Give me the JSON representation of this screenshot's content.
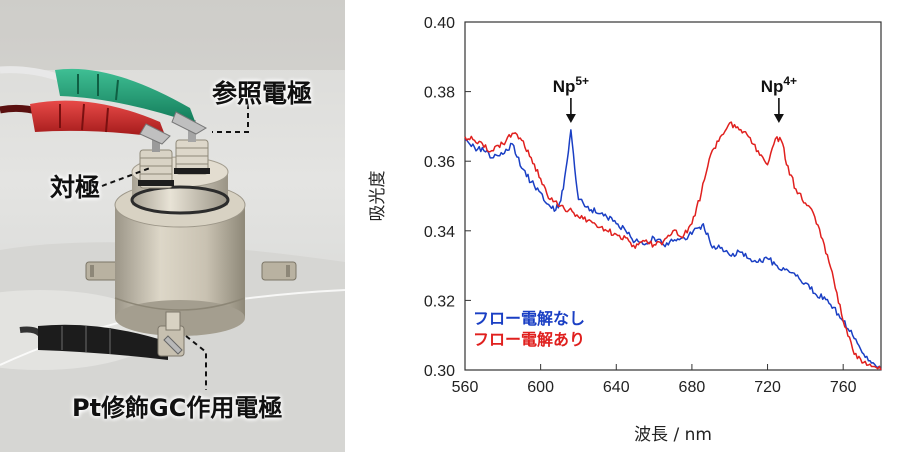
{
  "photo": {
    "labels": {
      "reference_electrode": "参照電極",
      "counter_electrode": "対極",
      "working_electrode": "Pt修飾GC作用電極"
    }
  },
  "chart_data": {
    "type": "line",
    "xlabel": "波長 / nm",
    "ylabel": "吸光度",
    "xlim": [
      560,
      780
    ],
    "ylim": [
      0.3,
      0.4
    ],
    "xticks": [
      560,
      600,
      640,
      680,
      720,
      760
    ],
    "yticks": [
      "0.30",
      "0.32",
      "0.34",
      "0.36",
      "0.38",
      "0.40"
    ],
    "grid": false,
    "legend_position": "bottom-left",
    "annotations": [
      {
        "base": "Np",
        "sup": "5+",
        "x": 616,
        "y": 0.379
      },
      {
        "base": "Np",
        "sup": "4+",
        "x": 726,
        "y": 0.379
      }
    ],
    "series": [
      {
        "name": "フロー電解なし",
        "color": "#1a3fc4",
        "x": [
          560,
          565,
          570,
          575,
          580,
          585,
          590,
          595,
          600,
          605,
          608,
          610,
          612,
          614,
          616,
          618,
          620,
          625,
          630,
          635,
          640,
          645,
          650,
          655,
          660,
          665,
          670,
          675,
          680,
          684,
          686,
          690,
          695,
          700,
          705,
          710,
          715,
          720,
          725,
          730,
          735,
          740,
          745,
          750,
          755,
          760,
          765,
          770,
          775,
          780
        ],
        "y": [
          0.366,
          0.364,
          0.363,
          0.361,
          0.362,
          0.365,
          0.358,
          0.354,
          0.351,
          0.347,
          0.346,
          0.348,
          0.352,
          0.36,
          0.369,
          0.358,
          0.349,
          0.347,
          0.345,
          0.344,
          0.342,
          0.34,
          0.337,
          0.336,
          0.338,
          0.336,
          0.337,
          0.338,
          0.339,
          0.341,
          0.342,
          0.336,
          0.335,
          0.333,
          0.334,
          0.332,
          0.331,
          0.332,
          0.33,
          0.329,
          0.327,
          0.325,
          0.322,
          0.321,
          0.318,
          0.314,
          0.31,
          0.305,
          0.302,
          0.3
        ]
      },
      {
        "name": "フロー電解あり",
        "color": "#e0201e",
        "x": [
          560,
          565,
          570,
          575,
          580,
          585,
          590,
          595,
          600,
          605,
          610,
          615,
          620,
          625,
          630,
          635,
          640,
          645,
          650,
          655,
          660,
          665,
          670,
          675,
          680,
          685,
          690,
          695,
          700,
          705,
          710,
          715,
          720,
          725,
          728,
          730,
          735,
          740,
          745,
          750,
          755,
          760,
          765,
          770,
          775,
          780
        ],
        "y": [
          0.367,
          0.366,
          0.364,
          0.363,
          0.365,
          0.368,
          0.366,
          0.361,
          0.355,
          0.349,
          0.347,
          0.346,
          0.344,
          0.343,
          0.341,
          0.34,
          0.339,
          0.338,
          0.335,
          0.337,
          0.336,
          0.337,
          0.34,
          0.338,
          0.342,
          0.351,
          0.362,
          0.367,
          0.371,
          0.369,
          0.367,
          0.363,
          0.359,
          0.367,
          0.365,
          0.359,
          0.352,
          0.348,
          0.344,
          0.336,
          0.326,
          0.314,
          0.306,
          0.302,
          0.301,
          0.3
        ]
      }
    ]
  }
}
